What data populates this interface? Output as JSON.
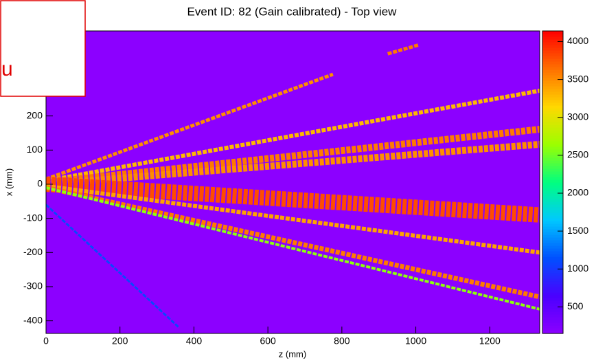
{
  "chart_data": {
    "type": "heatmap",
    "title": "Event ID: 82 (Gain calibrated) - Top view",
    "x_label": "z (mm)",
    "y_label": "x (mm)",
    "xlim": [
      0,
      1335
    ],
    "xticks": [
      0,
      200,
      400,
      600,
      800,
      1000,
      1200
    ],
    "ylim": [
      -437,
      449
    ],
    "yticks": [
      -400,
      -300,
      -200,
      -100,
      0,
      100,
      200
    ],
    "zlim": [
      150,
      4140
    ],
    "zticks": [
      500,
      1000,
      1500,
      2000,
      2500,
      3000,
      3500,
      4000
    ],
    "colorscale": [
      "#8c00ff",
      "#4a00ff",
      "#0050ff",
      "#00c8ff",
      "#00ff80",
      "#9cff00",
      "#ffd800",
      "#ff7000",
      "#ff0000"
    ],
    "tracks": [
      {
        "z0": 0,
        "x0": 15,
        "z1": 776,
        "x1": 322,
        "value": 3500,
        "width": 10
      },
      {
        "z0": 924,
        "x0": 382,
        "z1": 1008,
        "x1": 408,
        "value": 3600,
        "width": 10
      },
      {
        "z0": 0,
        "x0": 10,
        "z1": 1335,
        "x1": 274,
        "value": 3300,
        "width": 12
      },
      {
        "z0": 0,
        "x0": 5,
        "z1": 1335,
        "x1": 161,
        "value": 3600,
        "width": 20
      },
      {
        "z0": 0,
        "x0": 0,
        "z1": 1335,
        "x1": 117,
        "value": 3500,
        "width": 20
      },
      {
        "z0": 0,
        "x0": 0,
        "z1": 1335,
        "x1": -90,
        "value": 3800,
        "width": 45
      },
      {
        "z0": 0,
        "x0": -5,
        "z1": 1335,
        "x1": -200,
        "value": 3400,
        "width": 12
      },
      {
        "z0": 0,
        "x0": -10,
        "z1": 1335,
        "x1": -330,
        "value": 3600,
        "width": 14
      },
      {
        "z0": 0,
        "x0": -10,
        "z1": 1335,
        "x1": -366,
        "value": 2600,
        "width": 8
      },
      {
        "z0": 0,
        "x0": -60,
        "z1": 360,
        "x1": -420,
        "value": 1100,
        "width": 5
      }
    ],
    "annotation": "u"
  }
}
